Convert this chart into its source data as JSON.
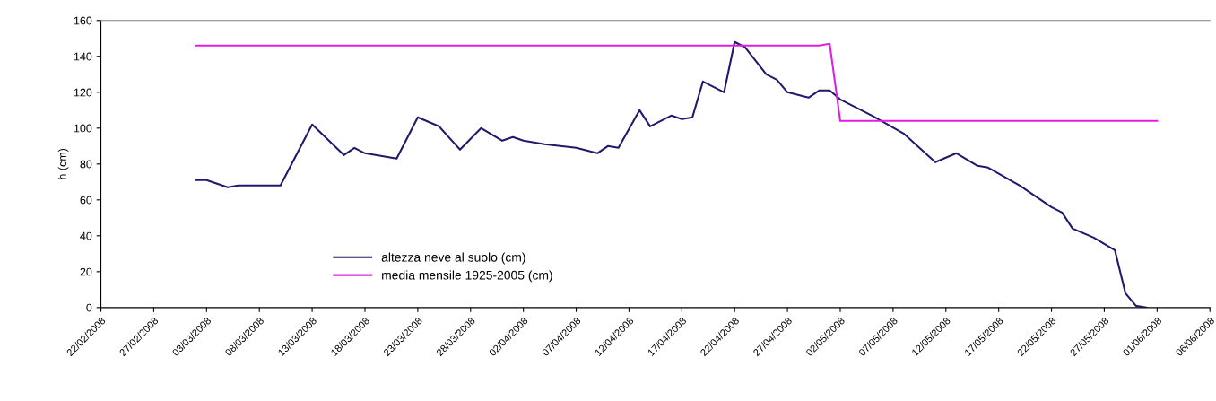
{
  "chart_data": {
    "type": "line",
    "ylabel": "h (cm)",
    "xlim": [
      "2008-02-22",
      "2008-06-06"
    ],
    "xticks": [
      {
        "value": "2008-02-22",
        "label": "22/02/2008"
      },
      {
        "value": "2008-02-27",
        "label": "27/02/2008"
      },
      {
        "value": "2008-03-03",
        "label": "03/03/2008"
      },
      {
        "value": "2008-03-08",
        "label": "08/03/2008"
      },
      {
        "value": "2008-03-13",
        "label": "13/03/2008"
      },
      {
        "value": "2008-03-18",
        "label": "18/03/2008"
      },
      {
        "value": "2008-03-23",
        "label": "23/03/2008"
      },
      {
        "value": "2008-03-28",
        "label": "28/03/2008"
      },
      {
        "value": "2008-04-02",
        "label": "02/04/2008"
      },
      {
        "value": "2008-04-07",
        "label": "07/04/2008"
      },
      {
        "value": "2008-04-12",
        "label": "12/04/2008"
      },
      {
        "value": "2008-04-17",
        "label": "17/04/2008"
      },
      {
        "value": "2008-04-22",
        "label": "22/04/2008"
      },
      {
        "value": "2008-04-27",
        "label": "27/04/2008"
      },
      {
        "value": "2008-05-02",
        "label": "02/05/2008"
      },
      {
        "value": "2008-05-07",
        "label": "07/05/2008"
      },
      {
        "value": "2008-05-12",
        "label": "12/05/2008"
      },
      {
        "value": "2008-05-17",
        "label": "17/05/2008"
      },
      {
        "value": "2008-05-22",
        "label": "22/05/2008"
      },
      {
        "value": "2008-05-27",
        "label": "27/05/2008"
      },
      {
        "value": "2008-06-01",
        "label": "01/06/2008"
      },
      {
        "value": "2008-06-06",
        "label": "06/06/2008"
      }
    ],
    "ylim": [
      0,
      160
    ],
    "yticks": [
      0,
      20,
      40,
      60,
      80,
      100,
      120,
      140,
      160
    ],
    "grid": false,
    "legend": "bottom left",
    "marker": "none",
    "line_style": "solid",
    "series": [
      {
        "name": "altezza neve al suolo (cm)",
        "color": "#1f1a6b",
        "x": [
          "2008-03-02",
          "2008-03-03",
          "2008-03-05",
          "2008-03-06",
          "2008-03-10",
          "2008-03-13",
          "2008-03-16",
          "2008-03-17",
          "2008-03-18",
          "2008-03-21",
          "2008-03-23",
          "2008-03-25",
          "2008-03-27",
          "2008-03-29",
          "2008-03-31",
          "2008-04-01",
          "2008-04-02",
          "2008-04-04",
          "2008-04-07",
          "2008-04-09",
          "2008-04-10",
          "2008-04-11",
          "2008-04-13",
          "2008-04-14",
          "2008-04-16",
          "2008-04-17",
          "2008-04-18",
          "2008-04-19",
          "2008-04-21",
          "2008-04-22",
          "2008-04-23",
          "2008-04-25",
          "2008-04-26",
          "2008-04-27",
          "2008-04-29",
          "2008-04-30",
          "2008-05-01",
          "2008-05-02",
          "2008-05-04",
          "2008-05-05",
          "2008-05-08",
          "2008-05-11",
          "2008-05-13",
          "2008-05-15",
          "2008-05-16",
          "2008-05-19",
          "2008-05-22",
          "2008-05-23",
          "2008-05-24",
          "2008-05-26",
          "2008-05-28",
          "2008-05-29",
          "2008-05-30",
          "2008-05-31"
        ],
        "values": [
          71,
          71,
          67,
          68,
          68,
          102,
          85,
          89,
          86,
          83,
          106,
          101,
          88,
          100,
          93,
          95,
          93,
          91,
          89,
          86,
          90,
          89,
          110,
          101,
          107,
          105,
          106,
          126,
          120,
          148,
          145,
          130,
          127,
          120,
          117,
          121,
          121,
          116,
          110,
          107,
          97,
          81,
          86,
          79,
          78,
          68,
          56,
          53,
          44,
          39,
          32,
          8,
          1,
          0
        ]
      },
      {
        "name": "media mensile 1925-2005 (cm)",
        "color": "#e020e0",
        "x": [
          "2008-03-02",
          "2008-04-30",
          "2008-05-01",
          "2008-05-02",
          "2008-06-01"
        ],
        "values": [
          146,
          146,
          147,
          104,
          104
        ]
      }
    ]
  }
}
